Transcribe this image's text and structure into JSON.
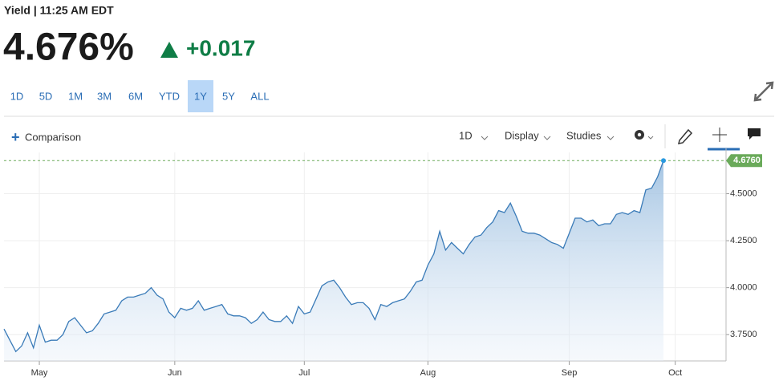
{
  "header": {
    "title": "Yield | 11:25 AM EDT",
    "price": "4.676%",
    "change": "+0.017"
  },
  "range_buttons": [
    {
      "label": "1D",
      "selected": false
    },
    {
      "label": "5D",
      "selected": false
    },
    {
      "label": "1M",
      "selected": false
    },
    {
      "label": "3M",
      "selected": false
    },
    {
      "label": "6M",
      "selected": false
    },
    {
      "label": "YTD",
      "selected": false
    },
    {
      "label": "1Y",
      "selected": true
    },
    {
      "label": "5Y",
      "selected": false
    },
    {
      "label": "ALL",
      "selected": false
    }
  ],
  "toolbar": {
    "comparison": "Comparison",
    "interval": "1D",
    "display": "Display",
    "studies": "Studies"
  },
  "chart_data": {
    "type": "area",
    "color": "#3a7bb8",
    "grid": true,
    "categories": [
      null,
      null,
      null,
      null,
      null,
      null,
      "May",
      null,
      null,
      null,
      null,
      null,
      null,
      null,
      null,
      null,
      null,
      null,
      null,
      null,
      null,
      null,
      null,
      null,
      null,
      null,
      null,
      null,
      null,
      "Jun",
      null,
      null,
      null,
      null,
      null,
      null,
      null,
      null,
      null,
      null,
      null,
      null,
      null,
      null,
      null,
      null,
      null,
      null,
      null,
      null,
      null,
      "Jul",
      null,
      null,
      null,
      null,
      null,
      null,
      null,
      null,
      null,
      null,
      null,
      null,
      null,
      null,
      null,
      null,
      null,
      null,
      null,
      null,
      "Aug",
      null,
      null,
      null,
      null,
      null,
      null,
      null,
      null,
      null,
      null,
      null,
      null,
      null,
      null,
      null,
      null,
      null,
      null,
      null,
      null,
      null,
      null,
      null,
      "Sep",
      null,
      null,
      null,
      null,
      null,
      null,
      null,
      null,
      null,
      null,
      null,
      null,
      null,
      null,
      null,
      null,
      null,
      "Oct",
      null,
      null,
      null,
      null,
      null,
      null,
      null,
      null
    ],
    "values": [
      3.78,
      3.72,
      3.66,
      3.69,
      3.76,
      3.68,
      3.8,
      3.71,
      3.72,
      3.72,
      3.75,
      3.82,
      3.84,
      3.8,
      3.76,
      3.77,
      3.81,
      3.86,
      3.87,
      3.88,
      3.93,
      3.95,
      3.95,
      3.96,
      3.97,
      4.0,
      3.96,
      3.94,
      3.87,
      3.84,
      3.89,
      3.88,
      3.89,
      3.93,
      3.88,
      3.89,
      3.9,
      3.91,
      3.86,
      3.85,
      3.85,
      3.84,
      3.81,
      3.83,
      3.87,
      3.83,
      3.82,
      3.82,
      3.85,
      3.81,
      3.9,
      3.86,
      3.87,
      3.94,
      4.01,
      4.03,
      4.04,
      4.0,
      3.95,
      3.91,
      3.92,
      3.92,
      3.89,
      3.83,
      3.91,
      3.9,
      3.92,
      3.93,
      3.94,
      3.98,
      4.03,
      4.04,
      4.12,
      4.18,
      4.3,
      4.2,
      4.24,
      4.21,
      4.18,
      4.23,
      4.27,
      4.28,
      4.32,
      4.35,
      4.41,
      4.4,
      4.45,
      4.38,
      4.3,
      4.29,
      4.29,
      4.28,
      4.26,
      4.24,
      4.23,
      4.21,
      4.29,
      4.37,
      4.37,
      4.35,
      4.36,
      4.33,
      4.34,
      4.34,
      4.39,
      4.4,
      4.39,
      4.41,
      4.4,
      4.52,
      4.53,
      4.59,
      4.676,
      null,
      null,
      null,
      null,
      null,
      null,
      null,
      null,
      null,
      null
    ],
    "ylim": [
      3.61,
      4.72
    ],
    "yticks": [
      {
        "value": 3.75,
        "label": "3.7500"
      },
      {
        "value": 4.0,
        "label": "4.0000"
      },
      {
        "value": 4.25,
        "label": "4.2500"
      },
      {
        "value": 4.5,
        "label": "4.5000"
      }
    ],
    "last_value_label": "4.6760",
    "last_value_color": "#6aaa5a"
  }
}
